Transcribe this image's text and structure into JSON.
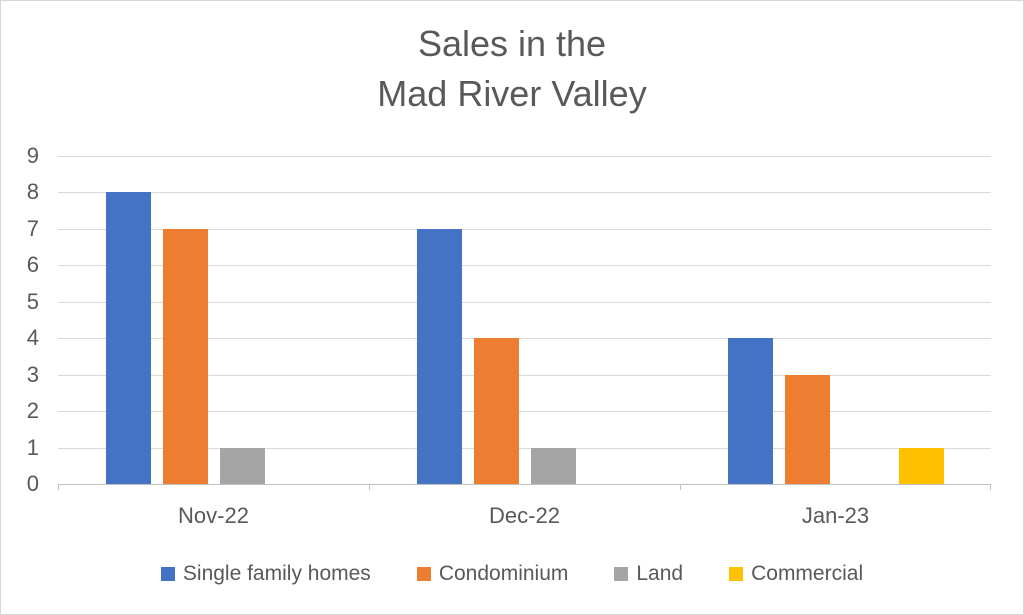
{
  "title": {
    "line1": "Sales in the",
    "line2": "Mad River Valley"
  },
  "chart_data": {
    "type": "bar",
    "title": "Sales in the Mad River Valley",
    "categories": [
      "Nov-22",
      "Dec-22",
      "Jan-23"
    ],
    "series": [
      {
        "name": "Single family homes",
        "color": "#4472C4",
        "values": [
          8,
          7,
          4
        ]
      },
      {
        "name": "Condominium",
        "color": "#ED7D31",
        "values": [
          7,
          4,
          3
        ]
      },
      {
        "name": "Land",
        "color": "#A5A5A5",
        "values": [
          1,
          1,
          0
        ]
      },
      {
        "name": "Commercial",
        "color": "#FFC000",
        "values": [
          0,
          0,
          1
        ]
      }
    ],
    "xlabel": "",
    "ylabel": "",
    "ylim": [
      0,
      9
    ],
    "ytick_step": 1,
    "yticks": [
      "0",
      "1",
      "2",
      "3",
      "4",
      "5",
      "6",
      "7",
      "8",
      "9"
    ],
    "grid": true,
    "legend_position": "bottom"
  },
  "colors": {
    "text": "#595959",
    "gridline": "#D9D9D9",
    "axis_line": "#BFBFBF",
    "background": "#FFFFFF",
    "border": "#D6D6D6"
  }
}
